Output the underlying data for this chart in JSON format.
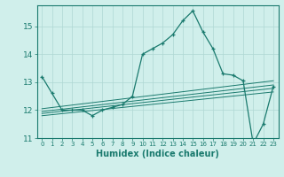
{
  "x": [
    0,
    1,
    2,
    3,
    4,
    5,
    6,
    7,
    8,
    9,
    10,
    11,
    12,
    13,
    14,
    15,
    16,
    17,
    18,
    19,
    20,
    21,
    22,
    23
  ],
  "main_y": [
    13.2,
    12.6,
    12.0,
    12.0,
    12.0,
    11.8,
    12.0,
    12.1,
    12.2,
    12.5,
    14.0,
    14.2,
    14.4,
    14.7,
    15.2,
    15.55,
    14.8,
    14.2,
    13.3,
    13.25,
    13.05,
    10.8,
    11.5,
    12.85
  ],
  "trends": [
    [
      [
        0,
        12.05
      ],
      [
        23,
        13.05
      ]
    ],
    [
      [
        0,
        11.95
      ],
      [
        23,
        12.9
      ]
    ],
    [
      [
        0,
        11.88
      ],
      [
        23,
        12.78
      ]
    ],
    [
      [
        0,
        11.8
      ],
      [
        23,
        12.65
      ]
    ]
  ],
  "color": "#1a7a6e",
  "bg_color": "#d0efeb",
  "grid_color": "#aed8d3",
  "xlabel": "Humidex (Indice chaleur)",
  "ylim": [
    11.0,
    15.75
  ],
  "xlim": [
    -0.5,
    23.5
  ],
  "yticks": [
    11,
    12,
    13,
    14,
    15
  ],
  "xticks": [
    0,
    1,
    2,
    3,
    4,
    5,
    6,
    7,
    8,
    9,
    10,
    11,
    12,
    13,
    14,
    15,
    16,
    17,
    18,
    19,
    20,
    21,
    22,
    23
  ],
  "marker": "+"
}
